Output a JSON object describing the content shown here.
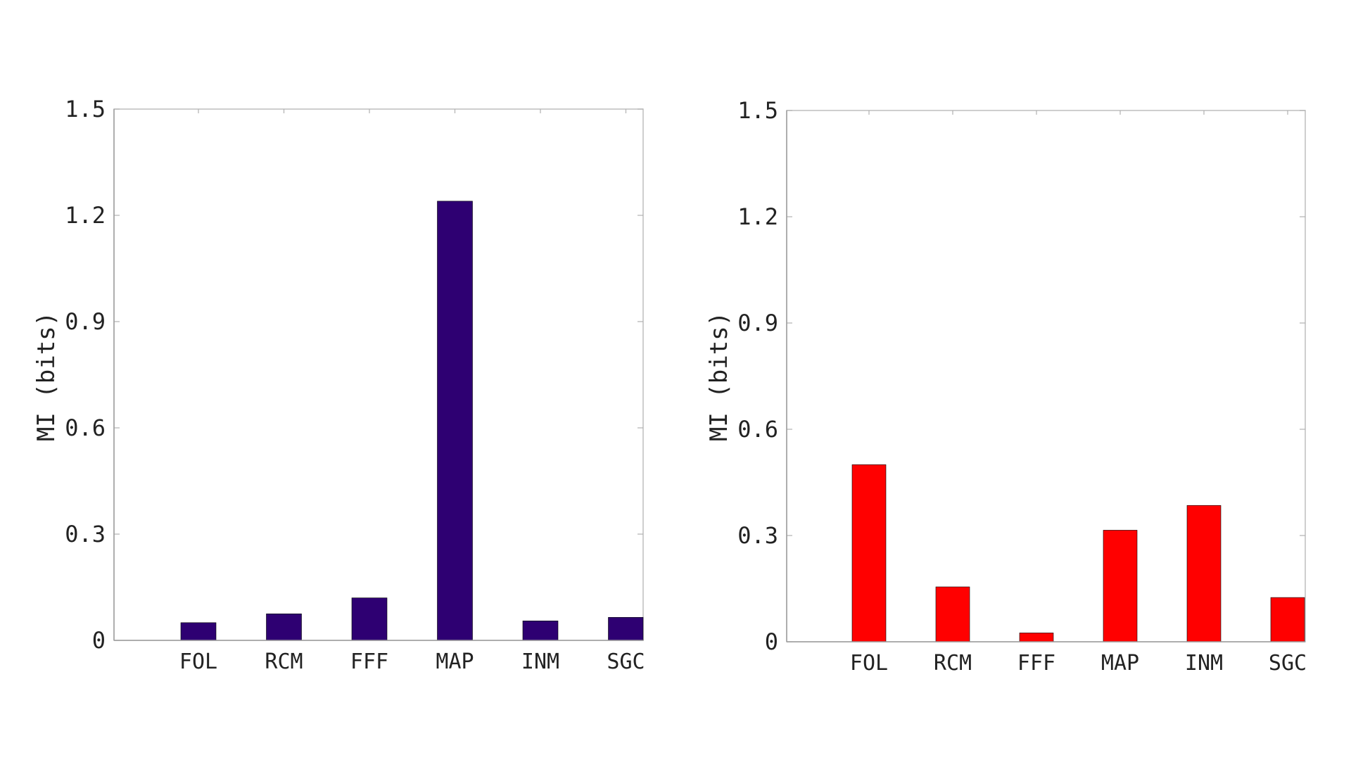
{
  "chart_data": [
    {
      "type": "bar",
      "categories": [
        "FOL",
        "RCM",
        "FFF",
        "MAP",
        "INM",
        "SGC"
      ],
      "values": [
        0.05,
        0.075,
        0.12,
        1.24,
        0.055,
        0.065
      ],
      "ylabel": "MI (bits)",
      "xlabel": "",
      "ylim": [
        0,
        1.5
      ],
      "yticks": [
        0,
        0.3,
        0.6,
        0.9,
        1.2,
        1.5
      ],
      "ytick_labels": [
        "0",
        "0.3",
        "0.6",
        "0.9",
        "1.2",
        "1.5"
      ],
      "color": "#2e0072",
      "grid": false
    },
    {
      "type": "bar",
      "categories": [
        "FOL",
        "RCM",
        "FFF",
        "MAP",
        "INM",
        "SGC"
      ],
      "values": [
        0.5,
        0.155,
        0.025,
        0.315,
        0.385,
        0.125
      ],
      "ylabel": "MI (bits)",
      "xlabel": "",
      "ylim": [
        0,
        1.5
      ],
      "yticks": [
        0,
        0.3,
        0.6,
        0.9,
        1.2,
        1.5
      ],
      "ytick_labels": [
        "0",
        "0.3",
        "0.6",
        "0.9",
        "1.2",
        "1.5"
      ],
      "color": "#ff0000",
      "grid": false
    }
  ]
}
